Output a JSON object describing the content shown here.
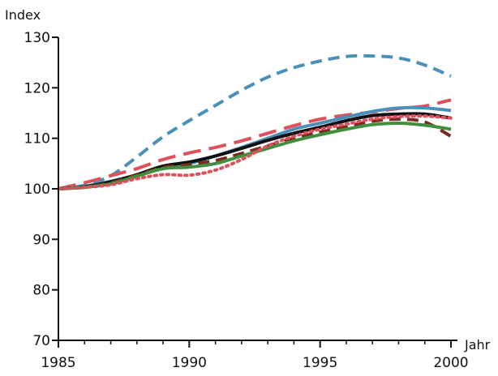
{
  "chart_data": {
    "type": "line",
    "ylabel": "Index",
    "xlabel": "Jahr",
    "xlim": [
      1985,
      2000
    ],
    "ylim": [
      70,
      130
    ],
    "x_ticks": [
      1985,
      1990,
      1995,
      2000
    ],
    "y_ticks": [
      70,
      80,
      90,
      100,
      110,
      120,
      130
    ],
    "grid": false,
    "legend": "none",
    "x": [
      1985,
      1986,
      1987,
      1988,
      1989,
      1990,
      1991,
      1992,
      1993,
      1994,
      1995,
      1996,
      1997,
      1998,
      1999,
      2000
    ],
    "series": [
      {
        "values": [
          100,
          100.7,
          102.6,
          106.3,
          110.3,
          113.5,
          116.5,
          119.5,
          122.1,
          124.0,
          125.3,
          126.2,
          126.3,
          125.9,
          124.5,
          122.3
        ],
        "color": "#4a90b8",
        "dash": "dashed"
      },
      {
        "values": [
          100,
          101.2,
          102.6,
          104.0,
          105.8,
          107.1,
          108.2,
          109.5,
          111.0,
          112.5,
          113.8,
          114.6,
          115.2,
          115.9,
          116.4,
          117.6
        ],
        "color": "#e0505a",
        "dash": "longdash"
      },
      {
        "values": [
          100,
          100.5,
          101.5,
          102.7,
          104.0,
          105.0,
          106.5,
          108.2,
          110.0,
          111.8,
          113.0,
          114.2,
          115.3,
          116.0,
          116.0,
          115.5
        ],
        "color": "#4a90b8",
        "dash": "solid"
      },
      {
        "values": [
          100,
          100.4,
          101.4,
          102.8,
          104.5,
          105.3,
          106.5,
          108.0,
          109.6,
          111.0,
          112.2,
          113.5,
          114.5,
          114.8,
          114.8,
          114.0
        ],
        "color": "#111111",
        "dash": "solid"
      },
      {
        "values": [
          100,
          100.3,
          101.2,
          102.7,
          104.2,
          104.8,
          105.6,
          107.0,
          108.5,
          110.0,
          111.2,
          112.3,
          113.4,
          113.8,
          113.2,
          110.4
        ],
        "color": "#7a2a1e",
        "dash": "dashed"
      },
      {
        "values": [
          100,
          100.3,
          101.0,
          102.5,
          104.0,
          104.3,
          105.0,
          106.5,
          108.0,
          109.5,
          110.7,
          111.8,
          112.7,
          113.0,
          112.6,
          111.8
        ],
        "color": "#3f8f3f",
        "dash": "solid"
      },
      {
        "values": [
          100,
          100.3,
          100.8,
          102.0,
          102.8,
          102.7,
          103.7,
          105.8,
          108.5,
          110.4,
          111.8,
          112.8,
          113.8,
          114.3,
          114.4,
          114.0
        ],
        "color": "#e0505a",
        "dash": "dotted"
      }
    ]
  }
}
